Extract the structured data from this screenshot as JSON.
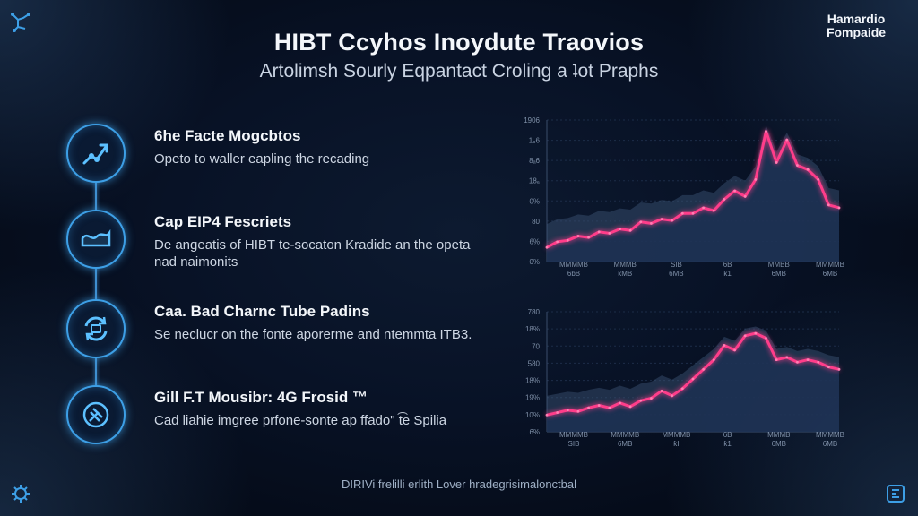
{
  "brand": {
    "line1": "Hamardio",
    "line2": "Fompaide"
  },
  "title": "HIBT Ccyhos Inoydute Traovios",
  "subtitle": "Artolimsh Sourly Eqpantact Croling a ʇot Praphs",
  "features": [
    {
      "title": "6he Facte Mogcbtos",
      "desc": "Opeto to waller eapling the recading",
      "icon": "route-icon"
    },
    {
      "title": "Cap EIP4 Fescriets",
      "desc": "De angeatis of HIBT te-socaton Kradide an the opeta nad naimonits",
      "icon": "wave-chart-icon"
    },
    {
      "title": "Caa. Bad Charnc Tube Padins",
      "desc": "Se neclucr on the fonte aporerme and ntemmta ITB3.",
      "icon": "cycle-icon"
    },
    {
      "title": "Gill F.T Mousibr: 4G Frosid ™",
      "desc": "Cad liahie imgree prfone-sonte ap ffado\" t͡e Spilia",
      "icon": "compass-icon"
    }
  ],
  "footer": "DIRIVi frelilli erlith Lover hradegrisimalonctbal",
  "colors": {
    "accent_line": "#ff3d8a",
    "circle_border": "#3d9fe6",
    "background": "#081226"
  },
  "chart_data": [
    {
      "type": "area",
      "ytick_labels": [
        "1906",
        "1₈6",
        "8ₐ6",
        "18₆",
        "0%",
        "80",
        "6%",
        "0%"
      ],
      "xtick_labels": [
        [
          "MMMMB",
          "6bB"
        ],
        [
          "MMMB",
          "ƙMB"
        ],
        [
          "SIB",
          "6MB"
        ],
        [
          "6B",
          "ƙ1"
        ],
        [
          "MMBB",
          "6MB"
        ],
        [
          "MMMMB",
          "6MB"
        ]
      ],
      "x": [
        0,
        1,
        2,
        3,
        4,
        5,
        6,
        7,
        8,
        9,
        10,
        11,
        12,
        13,
        14,
        15,
        16,
        17,
        18,
        19,
        20,
        21,
        22,
        23,
        24,
        25,
        26,
        27,
        28
      ],
      "series": [
        {
          "values": [
            10,
            14,
            15,
            18,
            17,
            21,
            20,
            23,
            22,
            28,
            27,
            30,
            29,
            34,
            34,
            38,
            36,
            44,
            50,
            46,
            58,
            92,
            70,
            86,
            68,
            65,
            58,
            40,
            38
          ]
        }
      ],
      "ylim": [
        0,
        100
      ]
    },
    {
      "type": "area",
      "ytick_labels": [
        "780",
        "18%",
        "70",
        "580",
        "18%",
        "19%",
        "10%",
        "6%"
      ],
      "xtick_labels": [
        [
          "MMMMB",
          "SIB"
        ],
        [
          "MMMMB",
          "6MB"
        ],
        [
          "MMMMB",
          "ƙI"
        ],
        [
          "6B",
          "ƙ1"
        ],
        [
          "MMMB",
          "6MB"
        ],
        [
          "MMMMB",
          "6MB"
        ]
      ],
      "x": [
        0,
        1,
        2,
        3,
        4,
        5,
        6,
        7,
        8,
        9,
        10,
        11,
        12,
        13,
        14,
        15,
        16,
        17,
        18,
        19,
        20,
        21,
        22,
        23,
        24,
        25,
        26,
        27,
        28
      ],
      "series": [
        {
          "values": [
            14,
            16,
            18,
            17,
            20,
            22,
            20,
            24,
            21,
            26,
            28,
            34,
            30,
            36,
            44,
            52,
            60,
            72,
            68,
            80,
            82,
            78,
            60,
            62,
            58,
            60,
            58,
            54,
            52
          ]
        }
      ],
      "ylim": [
        0,
        100
      ]
    }
  ]
}
